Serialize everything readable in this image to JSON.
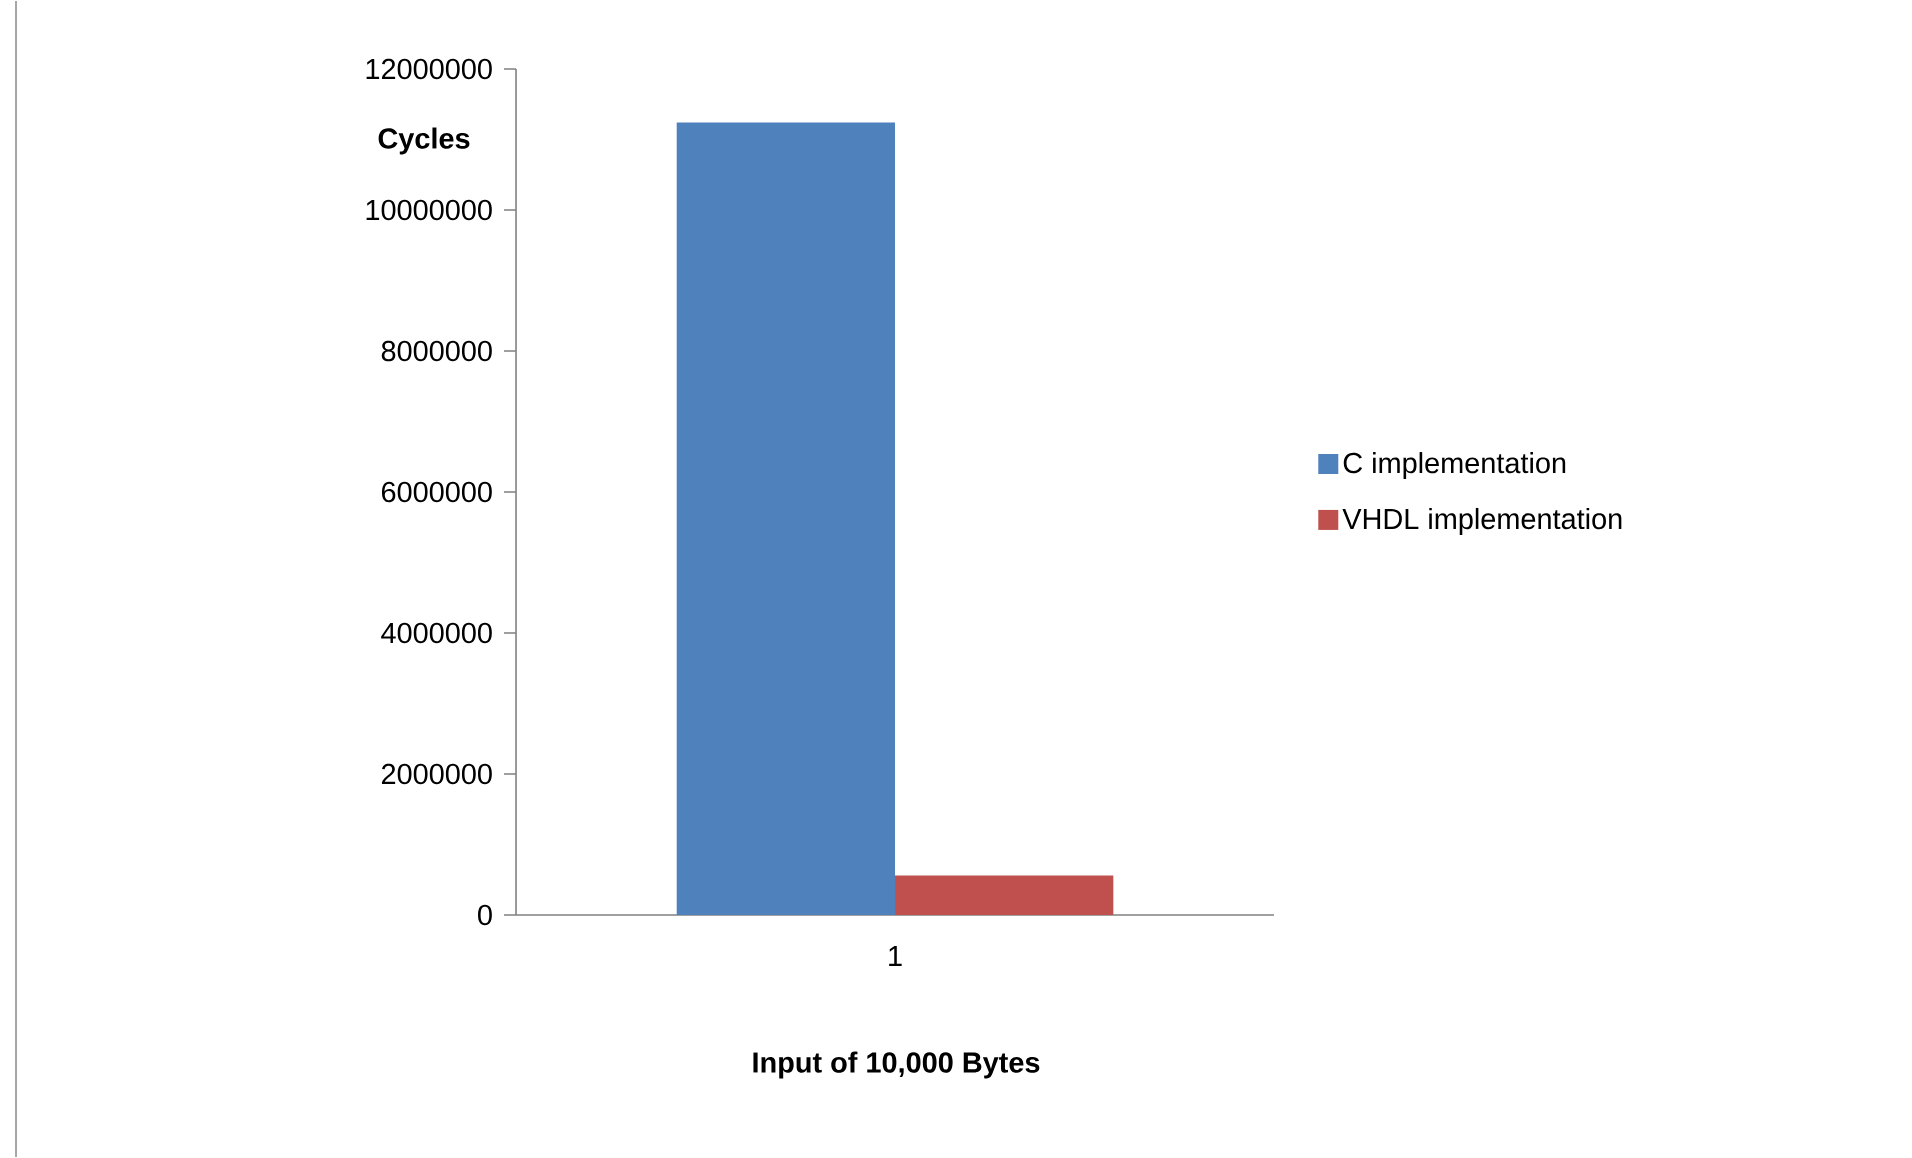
{
  "chart_data": {
    "type": "bar",
    "xlabel": "Input of 10,000 Bytes",
    "ylabel": "Cycles",
    "categories": [
      "1"
    ],
    "series": [
      {
        "name": "C implementation",
        "color": "#4f81bd",
        "values": [
          11240000
        ]
      },
      {
        "name": "VHDL implementation",
        "color": "#c0504d",
        "values": [
          560000
        ]
      }
    ],
    "ylim": [
      0,
      12000000
    ],
    "yticks": [
      0,
      2000000,
      4000000,
      6000000,
      8000000,
      10000000,
      12000000
    ],
    "grid": false,
    "legend": "right"
  }
}
